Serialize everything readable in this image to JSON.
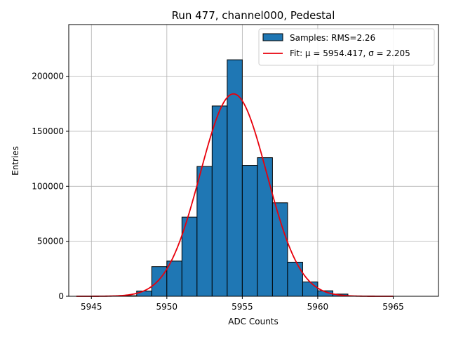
{
  "chart_data": {
    "type": "bar",
    "title": "Run 477, channel000, Pedestal",
    "xlabel": "ADC Counts",
    "ylabel": "Entries",
    "xlim": [
      5943.5,
      5968.0
    ],
    "ylim": [
      0,
      247000
    ],
    "xticks": [
      5945,
      5950,
      5955,
      5960,
      5965
    ],
    "yticks": [
      0,
      50000,
      100000,
      150000,
      200000
    ],
    "grid": true,
    "legend_position": "top-right",
    "bin_width": 1,
    "bins": [
      {
        "x": 5947,
        "value": 500
      },
      {
        "x": 5948,
        "value": 4800
      },
      {
        "x": 5949,
        "value": 27000
      },
      {
        "x": 5950,
        "value": 32000
      },
      {
        "x": 5951,
        "value": 72000
      },
      {
        "x": 5952,
        "value": 118000
      },
      {
        "x": 5953,
        "value": 173000
      },
      {
        "x": 5954,
        "value": 215000
      },
      {
        "x": 5955,
        "value": 119000
      },
      {
        "x": 5956,
        "value": 126000
      },
      {
        "x": 5957,
        "value": 85000
      },
      {
        "x": 5958,
        "value": 31000
      },
      {
        "x": 5959,
        "value": 13000
      },
      {
        "x": 5960,
        "value": 5000
      },
      {
        "x": 5961,
        "value": 2000
      },
      {
        "x": 5962,
        "value": 300
      }
    ],
    "fit": {
      "mu": 5954.417,
      "sigma": 2.205,
      "peak": 184000,
      "x_range": [
        5944,
        5965
      ]
    },
    "legend": [
      {
        "label": "Samples: RMS=2.26",
        "kind": "patch"
      },
      {
        "label": "Fit: μ = 5954.417, σ = 2.205",
        "kind": "line"
      }
    ],
    "colors": {
      "bar": "#1f77b4",
      "bar_edge": "#000000",
      "fit": "#e8000b",
      "grid": "#b0b0b0"
    }
  }
}
